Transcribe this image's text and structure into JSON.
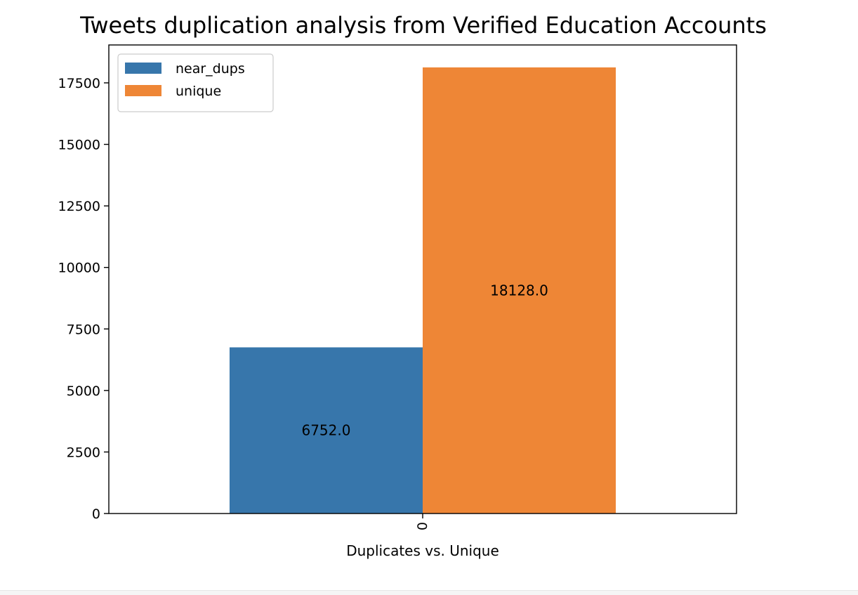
{
  "chart_data": {
    "type": "bar",
    "title": "Tweets duplication analysis from Verified Education Accounts",
    "xlabel": "Duplicates vs. Unique",
    "ylabel": "",
    "categories": [
      "0"
    ],
    "series": [
      {
        "name": "near_dups",
        "values": [
          6752.0
        ],
        "color": "#3776ab",
        "data_labels": [
          "6752.0"
        ]
      },
      {
        "name": "unique",
        "values": [
          18128.0
        ],
        "color": "#ee8636",
        "data_labels": [
          "18128.0"
        ]
      }
    ],
    "ylim": [
      0,
      19040
    ],
    "yticks": [
      0,
      2500,
      5000,
      7500,
      10000,
      12500,
      15000,
      17500
    ],
    "ytick_labels": [
      "0",
      "2500",
      "5000",
      "7500",
      "10000",
      "12500",
      "15000",
      "17500"
    ],
    "legend": "upper-left",
    "grid": false
  }
}
